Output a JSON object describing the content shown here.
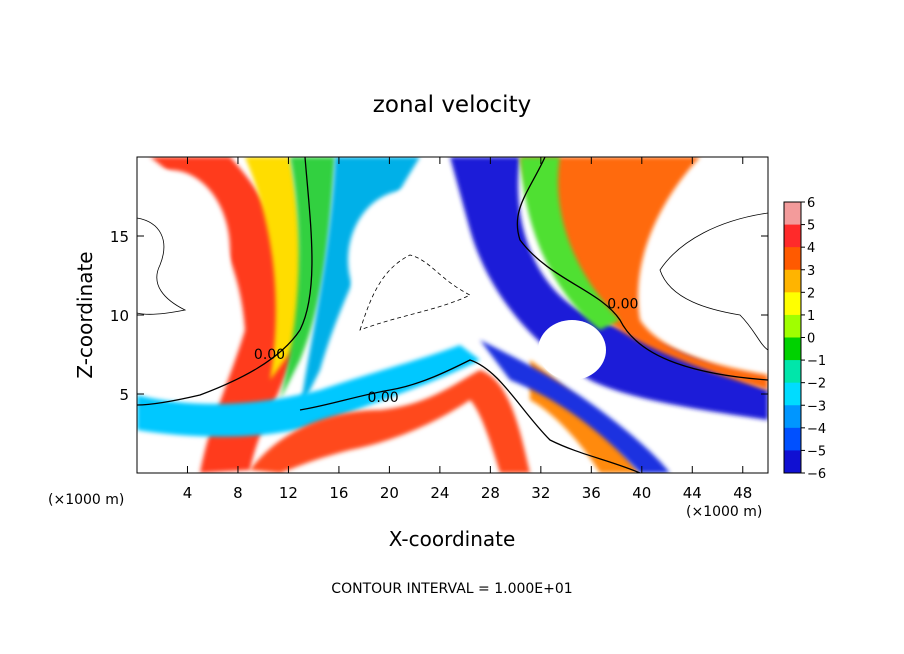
{
  "chart_data": {
    "type": "heatmap",
    "title": "zonal velocity",
    "xlabel": "X-coordinate",
    "ylabel": "Z-coordinate",
    "x_unit_left": "(×1000 m)",
    "x_unit_right": "(×1000 m)",
    "xlim": [
      0,
      50
    ],
    "ylim": [
      0,
      20
    ],
    "x_ticks": [
      4,
      8,
      12,
      16,
      20,
      24,
      28,
      32,
      36,
      40,
      44,
      48
    ],
    "y_ticks": [
      5,
      10,
      15
    ],
    "contour_labels": [
      {
        "text": "0.00",
        "x": 10.5,
        "z": 7.2
      },
      {
        "text": "0.00",
        "x": 19.5,
        "z": 4.5
      },
      {
        "text": "0.00",
        "x": 38.5,
        "z": 10.4
      }
    ],
    "footer": "CONTOUR INTERVAL = 1.000E+01",
    "colorbar": {
      "levels": [
        6,
        5,
        4,
        3,
        2,
        1,
        0,
        -1,
        -2,
        -3,
        -4,
        -5,
        -6
      ],
      "labels": [
        "6",
        "5",
        "4",
        "3",
        "2",
        "1",
        "0",
        "−1",
        "−2",
        "−3",
        "−4",
        "−5",
        "−6"
      ],
      "colors": [
        "#f39b9b",
        "#ff2a2a",
        "#ff5a00",
        "#ffb400",
        "#ffff00",
        "#a0ff00",
        "#00d200",
        "#00e6aa",
        "#00dcff",
        "#0096ff",
        "#0050ff",
        "#1010d2",
        "#5a00b4"
      ]
    }
  }
}
